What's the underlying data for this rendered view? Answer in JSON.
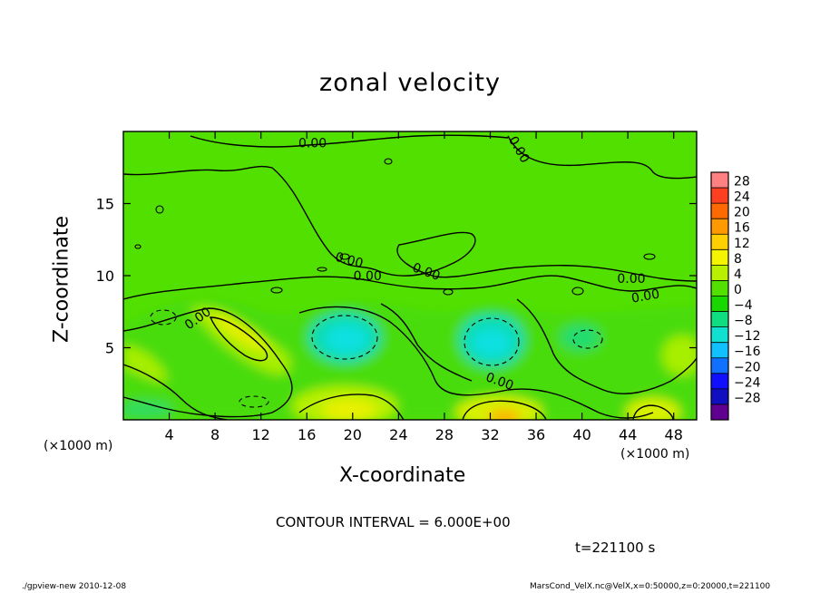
{
  "chart_data": {
    "type": "heatmap",
    "title": "zonal velocity",
    "xlabel": "X-coordinate",
    "ylabel": "Z-coordinate",
    "x_unit_label": "(×1000 m)",
    "xlim": [
      0,
      50
    ],
    "ylim": [
      0,
      20
    ],
    "x_ticks": [
      4,
      8,
      12,
      16,
      20,
      24,
      28,
      32,
      36,
      40,
      44,
      48
    ],
    "y_ticks": [
      5,
      10,
      15
    ],
    "colorbar": {
      "levels": [
        28,
        24,
        20,
        16,
        12,
        8,
        4,
        0,
        -4,
        -8,
        -12,
        -16,
        -20,
        -24,
        -28
      ],
      "colors": [
        "#ff8080",
        "#ff4020",
        "#ff6a00",
        "#ff9900",
        "#ffd000",
        "#f4f400",
        "#b8f000",
        "#52e000",
        "#18d800",
        "#10dc80",
        "#10e0d0",
        "#10c0ff",
        "#1070ff",
        "#1010ff",
        "#1010c0",
        "#600090"
      ]
    },
    "contour_interval": "CONTOUR INTERVAL = 6.000E+00",
    "contour_labels": [
      "0.00",
      "0.00",
      "0.00",
      "0.00",
      "0.00",
      "0.00",
      "0.00",
      "0.00",
      "0.00"
    ],
    "background_value": 0,
    "regions": [
      {
        "name": "positive-jet-1",
        "x": 11.5,
        "z": 6.2,
        "value": 9
      },
      {
        "name": "negative-core-1",
        "x": 19.5,
        "z": 5.5,
        "value": -8
      },
      {
        "name": "negative-core-2",
        "x": 32,
        "z": 5.5,
        "value": -7
      },
      {
        "name": "positive-core-2",
        "x": 19.5,
        "z": 1.2,
        "value": 8
      },
      {
        "name": "positive-core-3",
        "x": 33,
        "z": 0.8,
        "value": 10
      },
      {
        "name": "positive-core-4",
        "x": 46.5,
        "z": 0.8,
        "value": 10
      }
    ]
  },
  "annotations": {
    "time": "t=221100 s",
    "footer_left": "./gpview-new   2010-12-08",
    "footer_right": "MarsCond_VelX.nc@VelX,x=0:50000,z=0:20000,t=221100"
  }
}
